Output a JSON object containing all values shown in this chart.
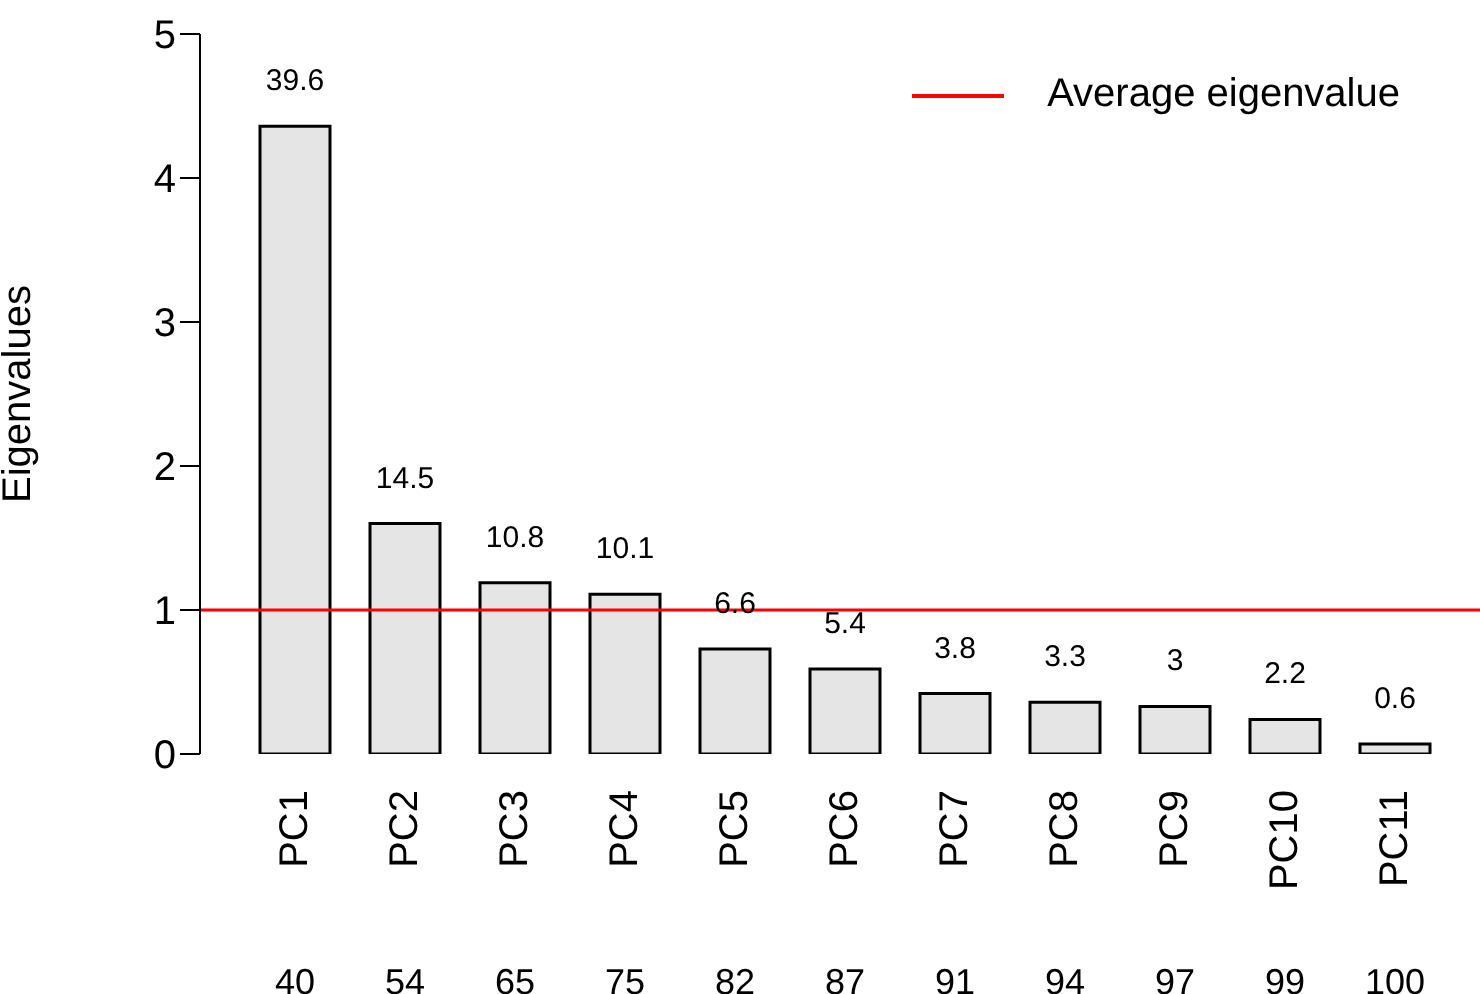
{
  "chart_data": {
    "type": "bar",
    "ylabel": "Eigenvalues",
    "categories": [
      "PC1",
      "PC2",
      "PC3",
      "PC4",
      "PC5",
      "PC6",
      "PC7",
      "PC8",
      "PC9",
      "PC10",
      "PC11"
    ],
    "values": [
      4.36,
      1.6,
      1.19,
      1.11,
      0.73,
      0.59,
      0.42,
      0.36,
      0.33,
      0.24,
      0.07
    ],
    "color": "#e5e5e5",
    "ylim": [
      0,
      5
    ],
    "yticks": [
      0,
      1,
      2,
      3,
      4,
      5
    ],
    "grid": false,
    "legend": "top right",
    "ref_lines": [
      {
        "axis": "y",
        "value": 1,
        "label": "Average eigenvalue",
        "color": "#ff0000"
      }
    ],
    "annotations": [
      {
        "text": "39.6",
        "x": "PC1",
        "y": 4.36
      },
      {
        "text": "14.5",
        "x": "PC2",
        "y": 1.6
      },
      {
        "text": "10.8",
        "x": "PC3",
        "y": 1.19
      },
      {
        "text": "10.1",
        "x": "PC4",
        "y": 1.11
      },
      {
        "text": "6.6",
        "x": "PC5",
        "y": 0.73
      },
      {
        "text": "5.4",
        "x": "PC6",
        "y": 0.59
      },
      {
        "text": "3.8",
        "x": "PC7",
        "y": 0.42
      },
      {
        "text": "3.3",
        "x": "PC8",
        "y": 0.36
      },
      {
        "text": "3",
        "x": "PC9",
        "y": 0.33
      },
      {
        "text": "2.2",
        "x": "PC10",
        "y": 0.24
      },
      {
        "text": "0.6",
        "x": "PC11",
        "y": 0.07
      },
      "40",
      "54",
      "65",
      "75",
      "82",
      "87",
      "91",
      "94",
      "97",
      "99",
      "100"
    ]
  }
}
